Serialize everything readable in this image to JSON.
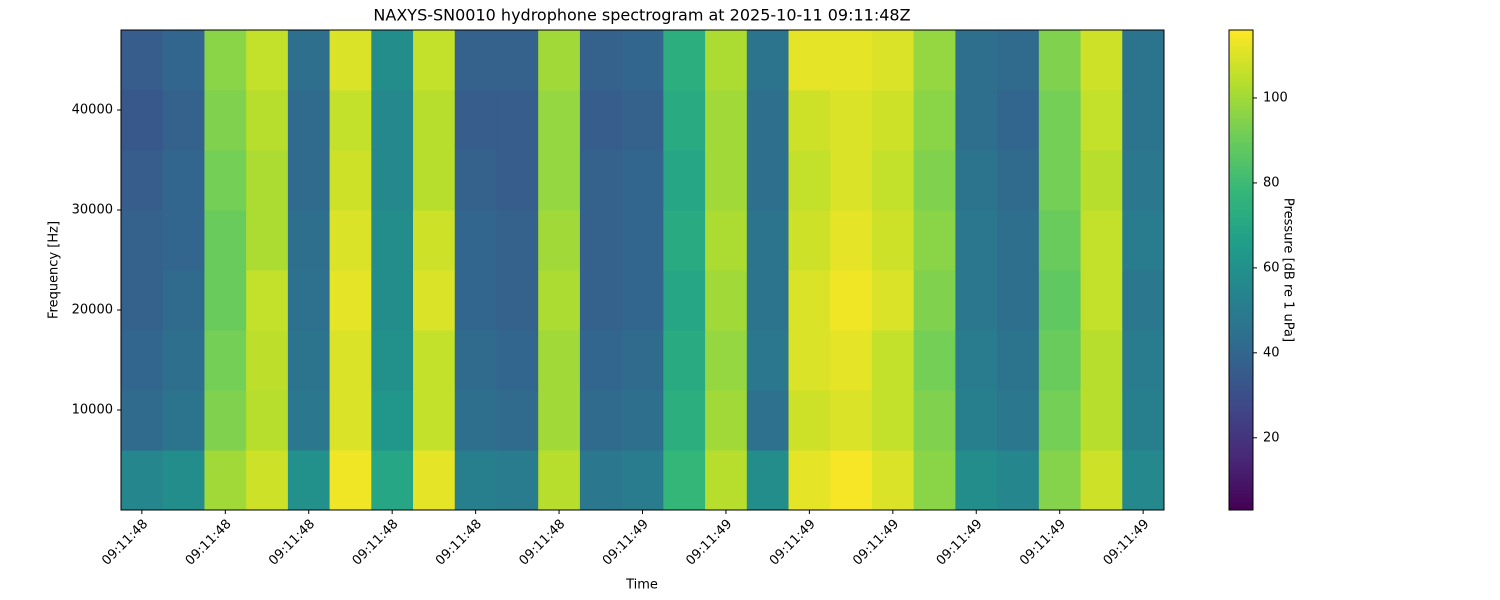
{
  "chart_data": {
    "type": "heatmap",
    "title": "NAXYS-SN0010 hydrophone spectrogram at 2025-10-11 09:11:48Z",
    "xlabel": "Time",
    "ylabel": "Frequency [Hz]",
    "colorbar_label": "Pressure [dB re 1 uPa]",
    "colormap": "viridis",
    "categories": [
      "09:11:48",
      null,
      "09:11:48",
      null,
      "09:11:48",
      null,
      "09:11:48",
      null,
      "09:11:48",
      null,
      "09:11:48",
      null,
      "09:11:49",
      null,
      "09:11:49",
      null,
      "09:11:49",
      null,
      "09:11:49",
      null,
      "09:11:49",
      null,
      "09:11:49",
      null,
      "09:11:49"
    ],
    "ylim": [
      0,
      48000
    ],
    "yticks": [
      10000,
      20000,
      30000,
      40000
    ],
    "clim": [
      3,
      116
    ],
    "cticks": [
      20,
      40,
      60,
      80,
      100
    ],
    "z": [
      [
        55,
        58,
        100,
        108,
        60,
        114,
        70,
        112,
        52,
        50,
        104,
        48,
        50,
        78,
        104,
        58,
        112,
        115,
        110,
        96,
        58,
        55,
        95,
        108,
        56
      ],
      [
        42,
        46,
        94,
        104,
        48,
        110,
        62,
        106,
        44,
        42,
        100,
        42,
        44,
        74,
        100,
        45,
        108,
        110,
        106,
        94,
        52,
        48,
        92,
        104,
        52
      ],
      [
        40,
        44,
        92,
        105,
        46,
        110,
        60,
        106,
        42,
        40,
        100,
        40,
        42,
        72,
        98,
        48,
        110,
        112,
        106,
        92,
        50,
        46,
        90,
        104,
        50
      ],
      [
        38,
        42,
        90,
        106,
        45,
        112,
        58,
        110,
        40,
        38,
        102,
        38,
        40,
        70,
        100,
        46,
        110,
        114,
        110,
        94,
        48,
        44,
        88,
        106,
        48
      ],
      [
        38,
        40,
        90,
        102,
        44,
        110,
        58,
        108,
        40,
        38,
        100,
        38,
        40,
        72,
        102,
        46,
        108,
        112,
        108,
        96,
        48,
        44,
        90,
        106,
        50
      ],
      [
        36,
        40,
        92,
        102,
        42,
        108,
        56,
        104,
        38,
        36,
        98,
        38,
        40,
        70,
        100,
        44,
        106,
        110,
        106,
        94,
        46,
        42,
        92,
        104,
        48
      ],
      [
        34,
        38,
        94,
        104,
        42,
        106,
        56,
        104,
        36,
        36,
        98,
        36,
        38,
        72,
        100,
        44,
        108,
        110,
        108,
        96,
        44,
        40,
        92,
        106,
        46
      ],
      [
        36,
        40,
        96,
        106,
        44,
        110,
        58,
        106,
        38,
        38,
        100,
        38,
        40,
        74,
        102,
        46,
        112,
        112,
        110,
        98,
        44,
        42,
        94,
        108,
        46
      ]
    ]
  }
}
